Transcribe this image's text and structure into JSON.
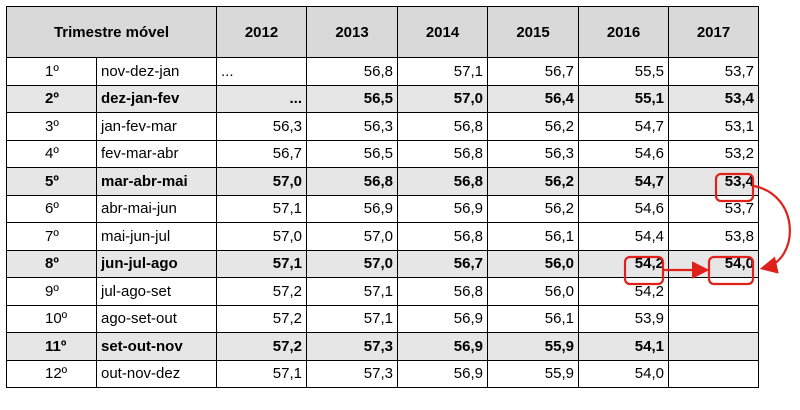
{
  "header": {
    "label": "Trimestre móvel",
    "years": [
      "2012",
      "2013",
      "2014",
      "2015",
      "2016",
      "2017"
    ]
  },
  "rows": [
    {
      "rank": "1º",
      "period": "nov-dez-jan",
      "bold": false,
      "values": [
        "...",
        "56,8",
        "57,1",
        "56,7",
        "55,5",
        "53,7"
      ]
    },
    {
      "rank": "2º",
      "period": "dez-jan-fev",
      "bold": true,
      "values": [
        "...",
        "56,5",
        "57,0",
        "56,4",
        "55,1",
        "53,4"
      ]
    },
    {
      "rank": "3º",
      "period": "jan-fev-mar",
      "bold": false,
      "values": [
        "56,3",
        "56,3",
        "56,8",
        "56,2",
        "54,7",
        "53,1"
      ]
    },
    {
      "rank": "4º",
      "period": "fev-mar-abr",
      "bold": false,
      "values": [
        "56,7",
        "56,5",
        "56,8",
        "56,3",
        "54,6",
        "53,2"
      ]
    },
    {
      "rank": "5º",
      "period": "mar-abr-mai",
      "bold": true,
      "values": [
        "57,0",
        "56,8",
        "56,8",
        "56,2",
        "54,7",
        "53,4"
      ]
    },
    {
      "rank": "6º",
      "period": "abr-mai-jun",
      "bold": false,
      "values": [
        "57,1",
        "56,9",
        "56,9",
        "56,2",
        "54,6",
        "53,7"
      ]
    },
    {
      "rank": "7º",
      "period": "mai-jun-jul",
      "bold": false,
      "values": [
        "57,0",
        "57,0",
        "56,8",
        "56,1",
        "54,4",
        "53,8"
      ]
    },
    {
      "rank": "8º",
      "period": "jun-jul-ago",
      "bold": true,
      "values": [
        "57,1",
        "57,0",
        "56,7",
        "56,0",
        "54,2",
        "54,0"
      ]
    },
    {
      "rank": "9º",
      "period": "jul-ago-set",
      "bold": false,
      "values": [
        "57,2",
        "57,1",
        "56,8",
        "56,0",
        "54,2",
        ""
      ]
    },
    {
      "rank": "10º",
      "period": "ago-set-out",
      "bold": false,
      "values": [
        "57,2",
        "57,1",
        "56,9",
        "56,1",
        "53,9",
        ""
      ]
    },
    {
      "rank": "11º",
      "period": "set-out-nov",
      "bold": true,
      "values": [
        "57,2",
        "57,3",
        "56,9",
        "55,9",
        "54,1",
        ""
      ]
    },
    {
      "rank": "12º",
      "period": "out-nov-dez",
      "bold": false,
      "values": [
        "57,1",
        "57,3",
        "56,9",
        "55,9",
        "54,0",
        ""
      ]
    }
  ],
  "annotations": {
    "highlight_color": "#e0201b"
  }
}
